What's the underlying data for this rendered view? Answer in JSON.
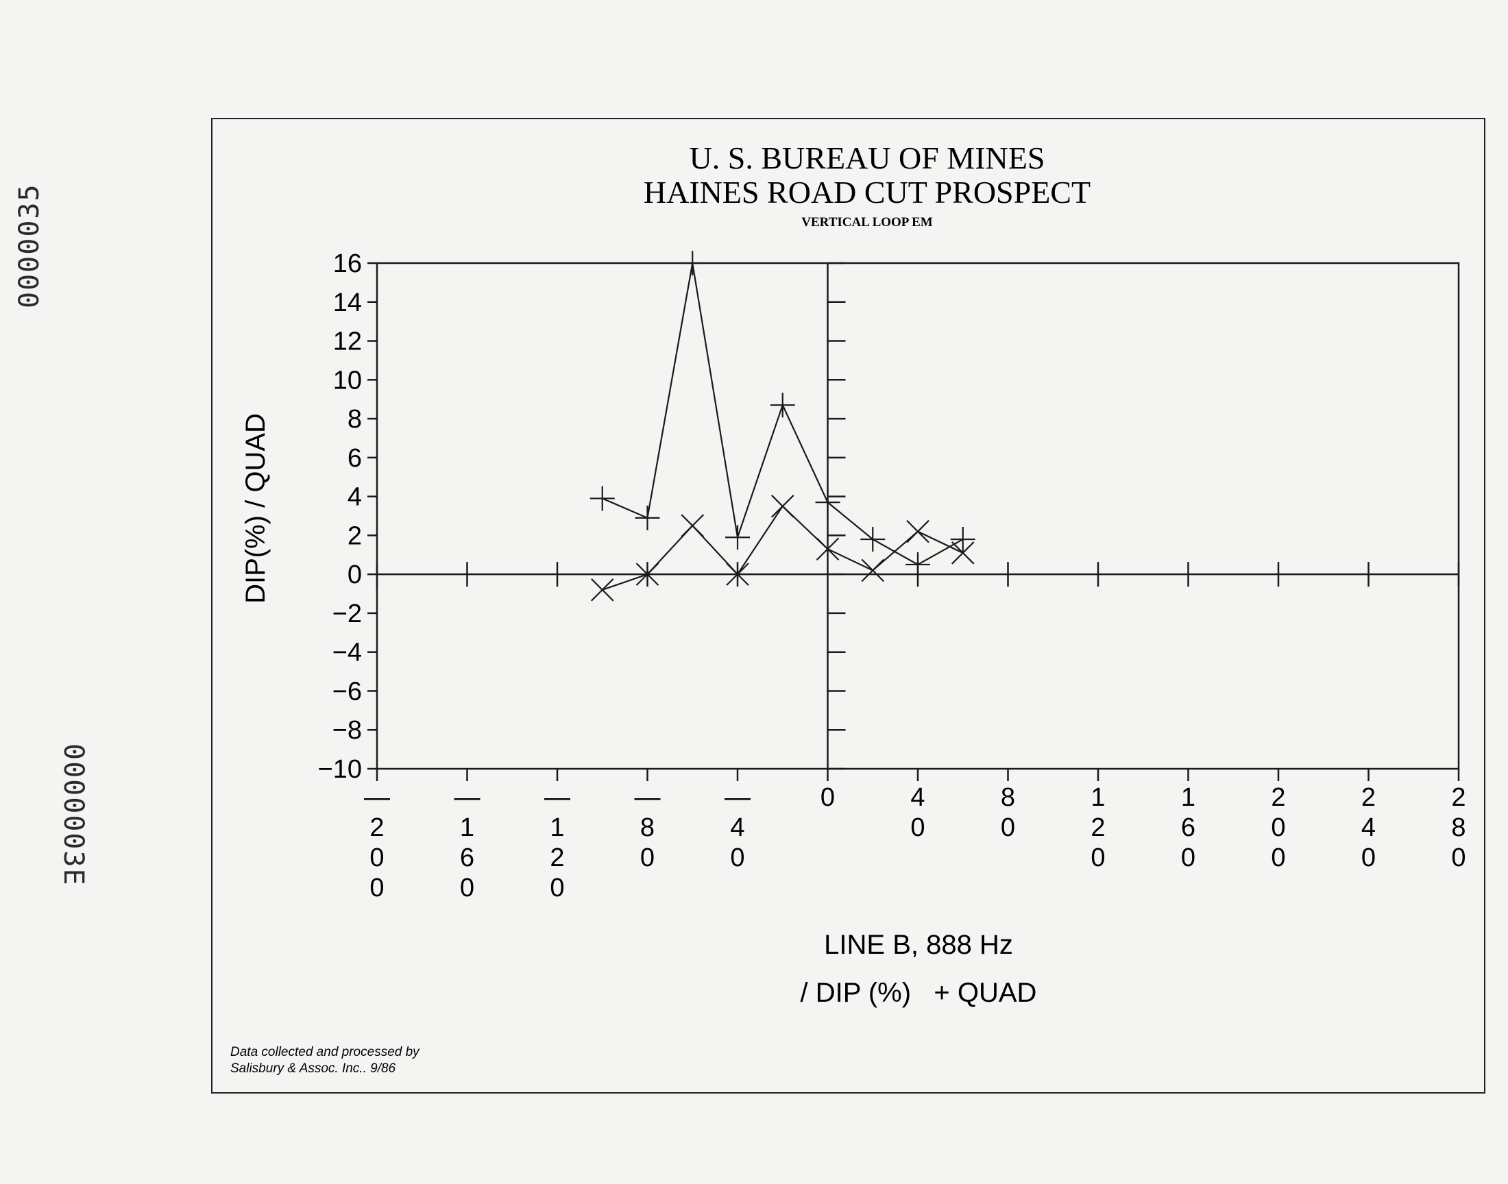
{
  "stamps": {
    "top": "0000035",
    "bottom": "0000003E"
  },
  "chart_data": {
    "type": "line",
    "title": "U. S. BUREAU OF MINES",
    "subtitle": "HAINES ROAD CUT PROSPECT",
    "subtitle2": "VERTICAL LOOP EM",
    "xlabel": "LINE B, 888 Hz",
    "ylabel": "DIP(%) / QUAD",
    "legend": "/ DIP (%)   + QUAD",
    "credit_line1": "Data collected and processed by",
    "credit_line2": "Salisbury & Assoc. Inc.. 9/86",
    "xlim": [
      -200,
      280
    ],
    "ylim": [
      -10,
      16
    ],
    "x_ticks": [
      -200,
      -160,
      -120,
      -80,
      -40,
      0,
      40,
      80,
      120,
      160,
      200,
      240,
      280
    ],
    "x_tick_labels": [
      "-200",
      "-160",
      "-120",
      "-80",
      "-40",
      "0",
      "40",
      "80",
      "120",
      "160",
      "200",
      "240",
      "280"
    ],
    "y_ticks": [
      -10,
      -8,
      -6,
      -4,
      -2,
      0,
      2,
      4,
      6,
      8,
      10,
      12,
      14,
      16
    ],
    "y_tick_labels": [
      "-10",
      "-8",
      "-6",
      "-4",
      "-2",
      "0",
      "2",
      "4",
      "6",
      "8",
      "10",
      "12",
      "14",
      "16"
    ],
    "series": [
      {
        "name": "DIP (%)",
        "marker": "x",
        "x": [
          -100,
          -80,
          -60,
          -40,
          -20,
          0,
          20,
          40,
          60
        ],
        "y": [
          -0.8,
          0,
          2.5,
          0,
          3.5,
          1.3,
          0.2,
          2.2,
          1.1
        ]
      },
      {
        "name": "QUAD",
        "marker": "+",
        "x": [
          -100,
          -80,
          -60,
          -40,
          -20,
          0,
          20,
          40,
          60
        ],
        "y": [
          3.9,
          2.9,
          16,
          1.9,
          8.7,
          3.7,
          1.8,
          0.5,
          1.8
        ]
      }
    ],
    "grid": false,
    "legend_position": "bottom-center"
  }
}
